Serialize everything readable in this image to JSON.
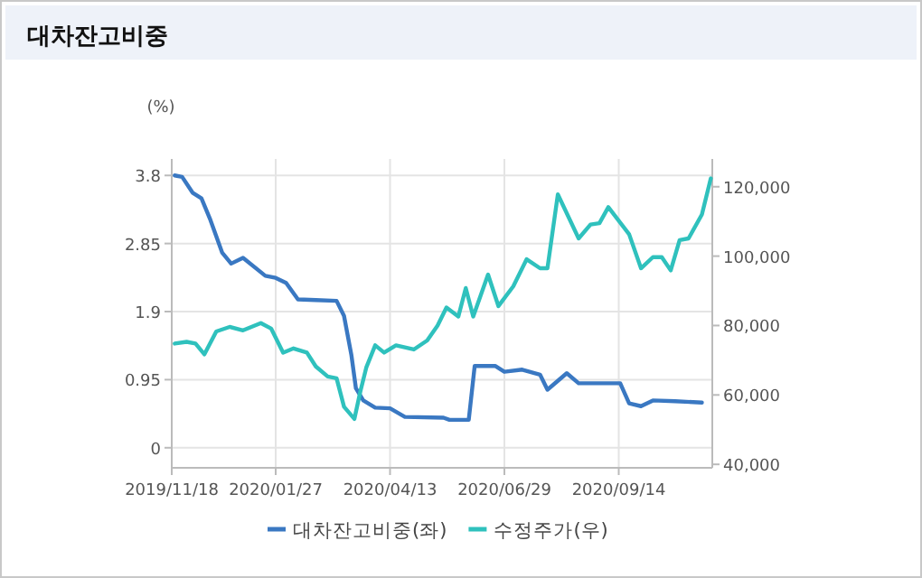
{
  "chart_data": {
    "type": "line",
    "title": "대차잔고비중",
    "ylabel": "(%)",
    "grid": true,
    "legend": "bottom",
    "line_style": "solid",
    "xlim": [
      "2019-11-18",
      "2020-11-16"
    ],
    "xticks": [
      {
        "value": "2019-11-18",
        "label": "2019/11/18"
      },
      {
        "value": "2020-01-27",
        "label": "2020/01/27"
      },
      {
        "value": "2020-04-13",
        "label": "2020/04/13"
      },
      {
        "value": "2020-06-29",
        "label": "2020/06/29"
      },
      {
        "value": "2020-09-14",
        "label": "2020/09/14"
      }
    ],
    "ylim": [
      -0.28,
      4.03
    ],
    "yticks": [
      0,
      0.95,
      1.9,
      2.85,
      3.8
    ],
    "y2lim": [
      39000,
      128000
    ],
    "y2ticks": [
      {
        "value": 40000,
        "label": "40,000"
      },
      {
        "value": 60000,
        "label": "60,000"
      },
      {
        "value": 80000,
        "label": "80,000"
      },
      {
        "value": 100000,
        "label": "100,000"
      },
      {
        "value": 120000,
        "label": "120,000"
      }
    ],
    "series": [
      {
        "name": "대차잔고비중(좌)",
        "color": "#3a78c2",
        "x": [
          "2019-11-20",
          "2019-11-25",
          "2019-12-02",
          "2019-12-08",
          "2019-12-14",
          "2019-12-22",
          "2019-12-28",
          "2020-01-05",
          "2020-01-20",
          "2020-01-27",
          "2020-02-03",
          "2020-02-11",
          "2020-02-23",
          "2020-03-08",
          "2020-03-13",
          "2020-03-18",
          "2020-03-21",
          "2020-03-26",
          "2020-04-03",
          "2020-04-13",
          "2020-04-23",
          "2020-05-19",
          "2020-05-23",
          "2020-06-05",
          "2020-06-09",
          "2020-06-23",
          "2020-06-29",
          "2020-07-11",
          "2020-07-23",
          "2020-07-28",
          "2020-08-10",
          "2020-08-18",
          "2020-09-15",
          "2020-09-21",
          "2020-09-29",
          "2020-10-07",
          "2020-10-22",
          "2020-11-09"
        ],
        "values": [
          3.8,
          3.78,
          3.56,
          3.48,
          3.18,
          2.72,
          2.57,
          2.65,
          2.4,
          2.37,
          2.3,
          2.07,
          2.06,
          2.05,
          1.84,
          1.29,
          0.83,
          0.66,
          0.56,
          0.55,
          0.43,
          0.42,
          0.39,
          0.39,
          1.14,
          1.14,
          1.06,
          1.09,
          1.02,
          0.81,
          1.04,
          0.9,
          0.9,
          0.62,
          0.58,
          0.66,
          0.65,
          0.63
        ]
      },
      {
        "name": "수정주가(우)",
        "color": "#2fc1bd",
        "axis": "y2",
        "x": [
          "2019-11-20",
          "2019-11-28",
          "2019-12-04",
          "2019-12-10",
          "2019-12-18",
          "2019-12-27",
          "2020-01-05",
          "2020-01-17",
          "2020-01-24",
          "2020-02-01",
          "2020-02-08",
          "2020-02-17",
          "2020-02-23",
          "2020-03-02",
          "2020-03-08",
          "2020-03-13",
          "2020-03-20",
          "2020-03-24",
          "2020-03-28",
          "2020-04-03",
          "2020-04-09",
          "2020-04-17",
          "2020-04-29",
          "2020-05-08",
          "2020-05-15",
          "2020-05-21",
          "2020-05-29",
          "2020-06-03",
          "2020-06-08",
          "2020-06-18",
          "2020-06-25",
          "2020-07-05",
          "2020-07-14",
          "2020-07-23",
          "2020-07-28",
          "2020-08-04",
          "2020-08-18",
          "2020-08-26",
          "2020-09-01",
          "2020-09-07",
          "2020-09-21",
          "2020-09-29",
          "2020-10-07",
          "2020-10-13",
          "2020-10-19",
          "2020-10-25",
          "2020-10-31",
          "2020-11-09",
          "2020-11-15"
        ],
        "values": [
          74800,
          75300,
          74800,
          71700,
          78300,
          79600,
          78600,
          80700,
          79100,
          72200,
          73400,
          72200,
          68200,
          65300,
          64800,
          56600,
          53100,
          61000,
          67900,
          74300,
          72200,
          74300,
          73100,
          75700,
          80000,
          85200,
          82600,
          90800,
          82600,
          94700,
          85600,
          91300,
          99100,
          96500,
          96500,
          117800,
          105100,
          109100,
          109500,
          114100,
          106300,
          96500,
          99700,
          99700,
          95900,
          104600,
          105100,
          112000,
          122400
        ]
      }
    ]
  }
}
